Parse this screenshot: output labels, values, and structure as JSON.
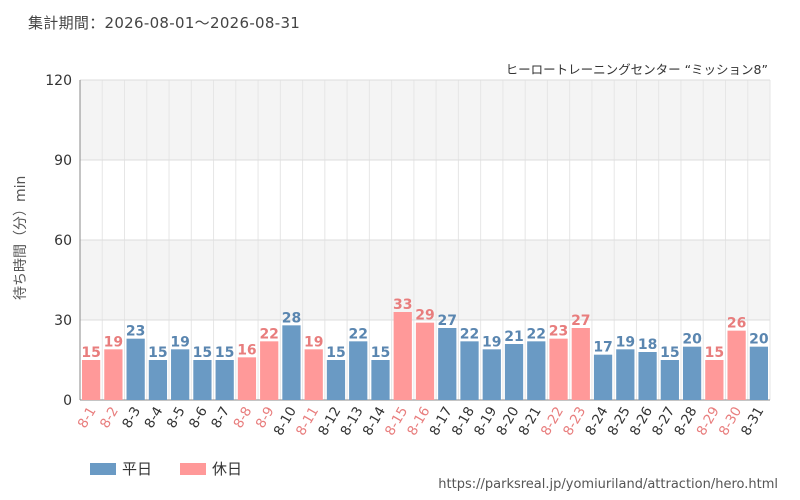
{
  "period_text": "集計期間：2026-08-01～2026-08-31",
  "source_text": "https://parksreal.jp/yomiuriland/attraction/hero.html",
  "colors": {
    "weekday": "#6a9ac4",
    "holiday": "#ff9999"
  },
  "chart_data": {
    "type": "bar",
    "title": "ヒーロートレーニングセンター “ミッション8”",
    "ylabel": "待ち時間（分）min",
    "xlabel": "",
    "ylim": [
      0,
      120
    ],
    "yticks": [
      0,
      30,
      60,
      90,
      120
    ],
    "grid": true,
    "legend_position": "bottom-left",
    "legend": [
      {
        "key": "weekday",
        "label": "平日"
      },
      {
        "key": "holiday",
        "label": "休日"
      }
    ],
    "categories": [
      "8-1",
      "8-2",
      "8-3",
      "8-4",
      "8-5",
      "8-6",
      "8-7",
      "8-8",
      "8-9",
      "8-10",
      "8-11",
      "8-12",
      "8-13",
      "8-14",
      "8-15",
      "8-16",
      "8-17",
      "8-18",
      "8-19",
      "8-20",
      "8-21",
      "8-22",
      "8-23",
      "8-24",
      "8-25",
      "8-26",
      "8-27",
      "8-28",
      "8-29",
      "8-30",
      "8-31"
    ],
    "values": [
      15,
      19,
      23,
      15,
      19,
      15,
      15,
      16,
      22,
      28,
      19,
      15,
      22,
      15,
      33,
      29,
      27,
      22,
      19,
      21,
      22,
      23,
      27,
      17,
      19,
      18,
      15,
      20,
      15,
      26,
      20
    ],
    "day_type": [
      "holiday",
      "holiday",
      "weekday",
      "weekday",
      "weekday",
      "weekday",
      "weekday",
      "holiday",
      "holiday",
      "weekday",
      "holiday",
      "weekday",
      "weekday",
      "weekday",
      "holiday",
      "holiday",
      "weekday",
      "weekday",
      "weekday",
      "weekday",
      "weekday",
      "holiday",
      "holiday",
      "weekday",
      "weekday",
      "weekday",
      "weekday",
      "weekday",
      "holiday",
      "holiday",
      "weekday"
    ]
  }
}
